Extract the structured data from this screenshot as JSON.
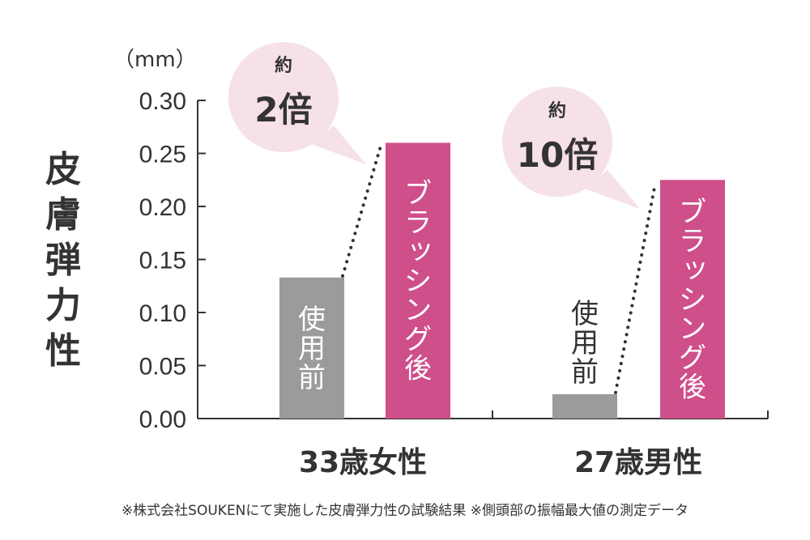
{
  "chart_data": {
    "type": "bar",
    "ylabel": "皮膚弾力性",
    "unit": "（mm）",
    "ylim": [
      0,
      0.3
    ],
    "yticks": [
      "0.00",
      "0.05",
      "0.10",
      "0.15",
      "0.20",
      "0.25",
      "0.30"
    ],
    "groups": [
      {
        "category": "33歳女性",
        "bars": [
          {
            "label": "使用前",
            "value": 0.133,
            "color": "#9b9b9b"
          },
          {
            "label": "ブラッシング後",
            "value": 0.26,
            "color": "#cf4f8a"
          }
        ],
        "callout_small": "約",
        "callout_big": "2倍"
      },
      {
        "category": "27歳男性",
        "bars": [
          {
            "label": "使用前",
            "value": 0.023,
            "color": "#9b9b9b"
          },
          {
            "label": "ブラッシング後",
            "value": 0.225,
            "color": "#cf4f8a"
          }
        ],
        "callout_small": "約",
        "callout_big": "10倍"
      }
    ],
    "bubble_color": "#f6e1e6",
    "axis_color": "#333333"
  },
  "footnote": "※株式会社SOUKENにて実施した皮膚弾力性の試験結果 ※側頭部の振幅最大値の測定データ"
}
